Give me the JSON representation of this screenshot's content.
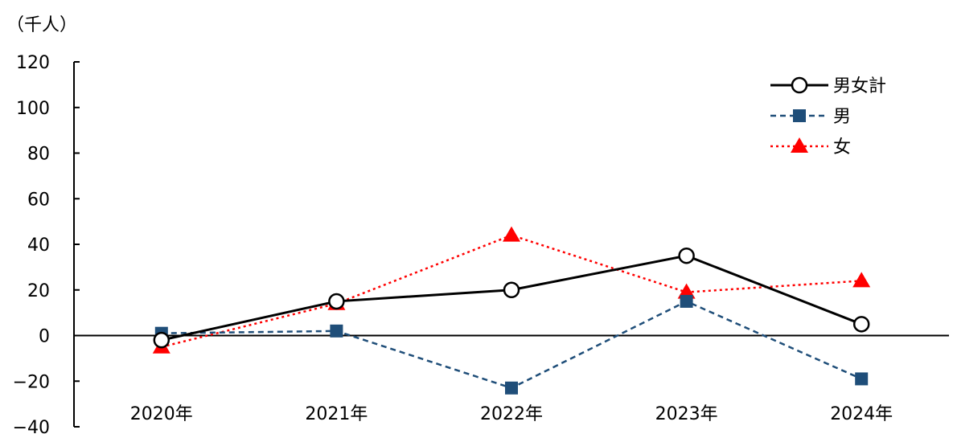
{
  "chart_data": {
    "type": "line",
    "unit_label": "（千人）",
    "categories": [
      "2020年",
      "2021年",
      "2022年",
      "2023年",
      "2024年"
    ],
    "ylim": [
      -40,
      120
    ],
    "yticks": [
      "120",
      "100",
      "80",
      "60",
      "40",
      "20",
      "0",
      "−20",
      "−40"
    ],
    "grid": false,
    "legend_position": "top-right",
    "series": [
      {
        "name": "男女計",
        "values": [
          -2,
          15,
          20,
          35,
          5
        ],
        "color": "#000000",
        "marker": "circle-open",
        "dash": "solid"
      },
      {
        "name": "男",
        "values": [
          1,
          2,
          -23,
          15,
          -19
        ],
        "color": "#1f4e79",
        "marker": "square",
        "dash": "dashed"
      },
      {
        "name": "女",
        "values": [
          -5,
          14,
          44,
          19,
          24
        ],
        "color": "#ff0000",
        "marker": "triangle",
        "dash": "dotted"
      }
    ]
  }
}
